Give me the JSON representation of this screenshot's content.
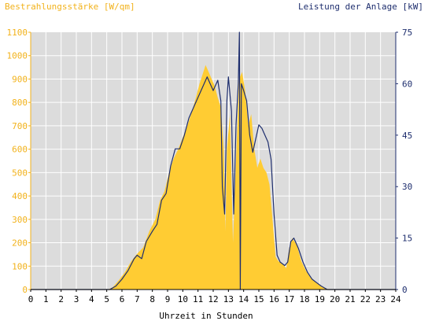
{
  "chart_data": {
    "type": "area",
    "ylabel_left": "Bestrahlungsstärke [W/qm]",
    "ylabel_right": "Leistung der Anlage [kW]",
    "xlabel": "Uhrzeit in Stunden",
    "xlim": [
      0,
      24
    ],
    "ylim_left": [
      0,
      1100
    ],
    "ylim_right": [
      0,
      75
    ],
    "x_ticks": [
      "0",
      "1",
      "2",
      "3",
      "4",
      "5",
      "6",
      "7",
      "8",
      "9",
      "10",
      "11",
      "12",
      "13",
      "14",
      "15",
      "16",
      "17",
      "18",
      "19",
      "20",
      "21",
      "22",
      "23",
      "24"
    ],
    "y_ticks_left": [
      "0",
      "100",
      "200",
      "300",
      "400",
      "500",
      "600",
      "700",
      "800",
      "900",
      "1000",
      "1100"
    ],
    "y_ticks_right": [
      "0",
      "15",
      "30",
      "45",
      "60",
      "75"
    ],
    "grid": true,
    "series": [
      {
        "name": "Bestrahlungsstärke [W/qm]",
        "axis": "left",
        "style": "filled area",
        "points": [
          [
            0,
            0
          ],
          [
            5.1,
            0
          ],
          [
            5.4,
            10
          ],
          [
            5.8,
            40
          ],
          [
            6.2,
            75
          ],
          [
            6.6,
            120
          ],
          [
            6.9,
            145
          ],
          [
            7.1,
            160
          ],
          [
            7.4,
            180
          ],
          [
            7.8,
            250
          ],
          [
            8.2,
            300
          ],
          [
            8.5,
            380
          ],
          [
            8.8,
            420
          ],
          [
            9.1,
            500
          ],
          [
            9.4,
            560
          ],
          [
            9.7,
            600
          ],
          [
            10.0,
            650
          ],
          [
            10.3,
            700
          ],
          [
            10.6,
            760
          ],
          [
            10.9,
            830
          ],
          [
            11.1,
            880
          ],
          [
            11.3,
            920
          ],
          [
            11.5,
            960
          ],
          [
            11.7,
            930
          ],
          [
            11.9,
            900
          ],
          [
            12.1,
            870
          ],
          [
            12.3,
            820
          ],
          [
            12.5,
            780
          ],
          [
            12.7,
            600
          ],
          [
            12.8,
            250
          ],
          [
            12.9,
            600
          ],
          [
            13.1,
            750
          ],
          [
            13.3,
            200
          ],
          [
            13.5,
            550
          ],
          [
            13.7,
            900
          ],
          [
            13.9,
            930
          ],
          [
            14.1,
            850
          ],
          [
            14.3,
            700
          ],
          [
            14.5,
            750
          ],
          [
            14.7,
            600
          ],
          [
            14.9,
            520
          ],
          [
            15.1,
            560
          ],
          [
            15.3,
            520
          ],
          [
            15.5,
            500
          ],
          [
            15.7,
            450
          ],
          [
            15.9,
            300
          ],
          [
            16.1,
            140
          ],
          [
            16.3,
            120
          ],
          [
            16.6,
            110
          ],
          [
            16.8,
            90
          ],
          [
            17.0,
            180
          ],
          [
            17.2,
            220
          ],
          [
            17.5,
            190
          ],
          [
            17.8,
            120
          ],
          [
            18.1,
            80
          ],
          [
            18.4,
            50
          ],
          [
            18.7,
            35
          ],
          [
            19.0,
            20
          ],
          [
            19.3,
            8
          ],
          [
            19.6,
            0
          ],
          [
            24,
            0
          ]
        ]
      },
      {
        "name": "Leistung der Anlage [kW]",
        "axis": "right",
        "style": "line",
        "points": [
          [
            0,
            0
          ],
          [
            5.2,
            0
          ],
          [
            5.6,
            1
          ],
          [
            6.0,
            3
          ],
          [
            6.4,
            5.5
          ],
          [
            6.8,
            9
          ],
          [
            7.0,
            10
          ],
          [
            7.3,
            9
          ],
          [
            7.6,
            14
          ],
          [
            8.0,
            17
          ],
          [
            8.3,
            19
          ],
          [
            8.6,
            26
          ],
          [
            8.9,
            28
          ],
          [
            9.2,
            36
          ],
          [
            9.5,
            41
          ],
          [
            9.8,
            41
          ],
          [
            10.1,
            45
          ],
          [
            10.4,
            50
          ],
          [
            10.7,
            53
          ],
          [
            10.9,
            55
          ],
          [
            11.1,
            57
          ],
          [
            11.3,
            59
          ],
          [
            11.6,
            62
          ],
          [
            11.8,
            60
          ],
          [
            12.0,
            58
          ],
          [
            12.3,
            61
          ],
          [
            12.5,
            55
          ],
          [
            12.6,
            30
          ],
          [
            12.75,
            22
          ],
          [
            12.9,
            55
          ],
          [
            13.0,
            62
          ],
          [
            13.2,
            52
          ],
          [
            13.35,
            22
          ],
          [
            13.5,
            48
          ],
          [
            13.65,
            60
          ],
          [
            13.72,
            75
          ],
          [
            13.78,
            0
          ],
          [
            13.85,
            60
          ],
          [
            14.0,
            58
          ],
          [
            14.2,
            55
          ],
          [
            14.4,
            45
          ],
          [
            14.6,
            40
          ],
          [
            14.8,
            44
          ],
          [
            15.0,
            48
          ],
          [
            15.2,
            47
          ],
          [
            15.4,
            45
          ],
          [
            15.6,
            43
          ],
          [
            15.8,
            38
          ],
          [
            16.0,
            22
          ],
          [
            16.2,
            10
          ],
          [
            16.4,
            8
          ],
          [
            16.7,
            7
          ],
          [
            16.9,
            8
          ],
          [
            17.1,
            14
          ],
          [
            17.3,
            15
          ],
          [
            17.6,
            12
          ],
          [
            17.9,
            8
          ],
          [
            18.2,
            5
          ],
          [
            18.5,
            3
          ],
          [
            18.8,
            2
          ],
          [
            19.1,
            1
          ],
          [
            19.5,
            0
          ],
          [
            24,
            0
          ]
        ]
      }
    ],
    "colors": {
      "area_fill": "#FFCC33",
      "line": "#1E2E6E",
      "plot_bg": "#DCDCDC",
      "grid": "#FFFFFF",
      "left_axis_text": "#F2B21B",
      "right_axis_text": "#1E2E6E",
      "x_axis_text": "#000000"
    }
  }
}
